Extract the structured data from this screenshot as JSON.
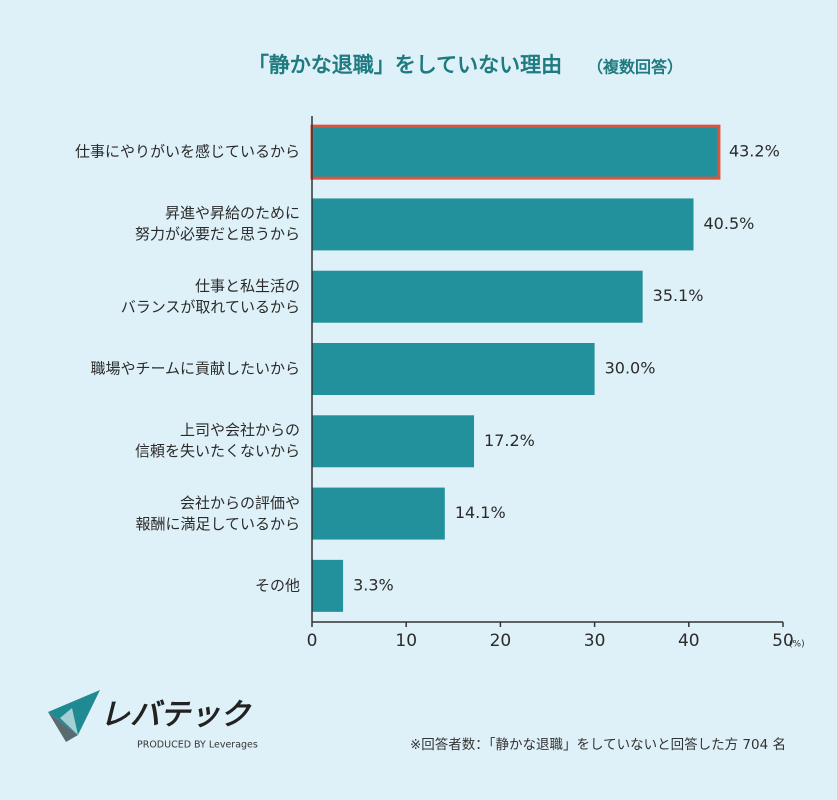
{
  "chart_data": {
    "type": "bar",
    "orientation": "horizontal",
    "title": "「静かな退職」をしていない理由",
    "subtitle": "（複数回答）",
    "categories": [
      "仕事にやりがいを感じているから",
      "昇進や昇給のために\n努力が必要だと思うから",
      "仕事と私生活の\nバランスが取れているから",
      "職場やチームに貢献したいから",
      "上司や会社からの\n信頼を失いたくないから",
      "会社からの評価や\n報酬に満足しているから",
      "その他"
    ],
    "values": [
      43.2,
      40.5,
      35.1,
      30.0,
      17.2,
      14.1,
      3.3
    ],
    "value_labels": [
      "43.2%",
      "40.5%",
      "35.1%",
      "30.0%",
      "17.2%",
      "14.1%",
      "3.3%"
    ],
    "color": "#23919b",
    "highlight": 0,
    "highlight_color": "#d9553f",
    "xlim": [
      0,
      50
    ],
    "xticks": [
      0,
      10,
      20,
      30,
      40,
      50
    ],
    "x_unit": "(%)",
    "note": "※回答者数：「静かな退職」をしていないと回答した方 704 名",
    "logo": "レバテック",
    "logo_sub": "PRODUCED BY Leverages"
  }
}
